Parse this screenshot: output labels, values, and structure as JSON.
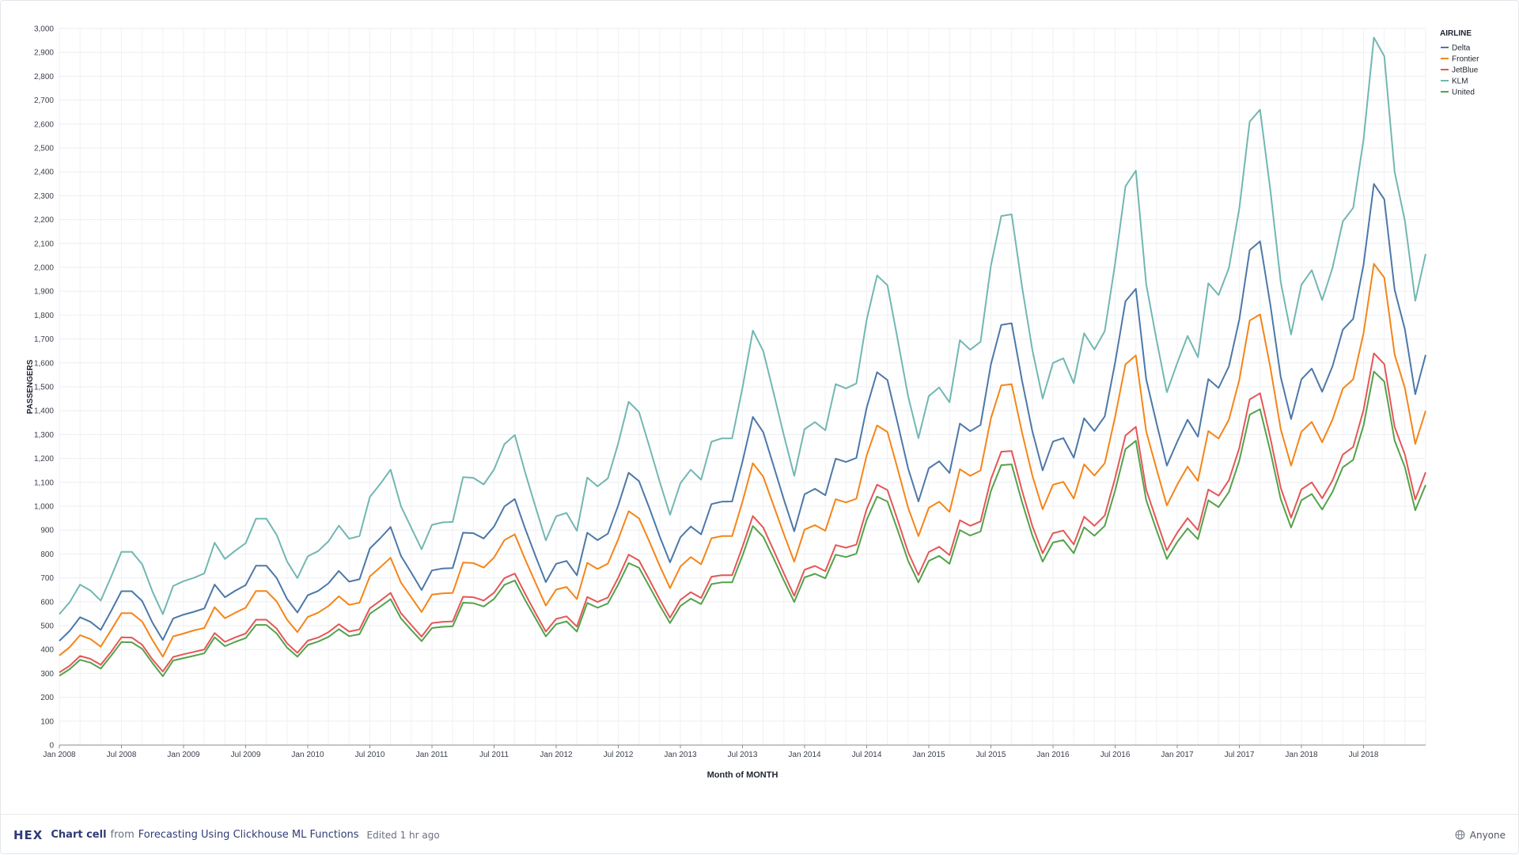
{
  "footer": {
    "logo": "HEX",
    "cell_type": "Chart cell",
    "from_word": "from",
    "project": "Forecasting Using Clickhouse ML Functions",
    "edited": "Edited 1 hr ago",
    "sharing": "Anyone",
    "sharing_icon": "globe-icon"
  },
  "chart_data": {
    "type": "line",
    "xlabel": "Month of MONTH",
    "ylabel": "PASSENGERS",
    "ylim": [
      0,
      3000
    ],
    "y_ticks": [
      0,
      100,
      200,
      300,
      400,
      500,
      600,
      700,
      800,
      900,
      1000,
      1100,
      1200,
      1300,
      1400,
      1500,
      1600,
      1700,
      1800,
      1900,
      2000,
      2100,
      2200,
      2300,
      2400,
      2500,
      2600,
      2700,
      2800,
      2900,
      3000
    ],
    "y_tick_labels": [
      "0",
      "100",
      "200",
      "300",
      "400",
      "500",
      "600",
      "700",
      "800",
      "900",
      "1,000",
      "1,100",
      "1,200",
      "1,300",
      "1,400",
      "1,500",
      "1,600",
      "1,700",
      "1,800",
      "1,900",
      "2,000",
      "2,100",
      "2,200",
      "2,300",
      "2,400",
      "2,500",
      "2,600",
      "2,700",
      "2,800",
      "2,900",
      "3,000"
    ],
    "x_start": "2008-01",
    "x_tick_labels": [
      "Jan 2008",
      "Jul 2008",
      "Jan 2009",
      "Jul 2009",
      "Jan 2010",
      "Jul 2010",
      "Jan 2011",
      "Jul 2011",
      "Jan 2012",
      "Jul 2012",
      "Jan 2013",
      "Jul 2013",
      "Jan 2014",
      "Jul 2014",
      "Jan 2015",
      "Jul 2015",
      "Jan 2016",
      "Jul 2016",
      "Jan 2017",
      "Jul 2017",
      "Jan 2018",
      "Jul 2018"
    ],
    "grid": true,
    "legend": {
      "title": "AIRLINE",
      "placement": "top-right"
    },
    "series": [
      {
        "name": "Delta",
        "color": "#4c78a8",
        "values": [
          436,
          478,
          535,
          516,
          482,
          561,
          644,
          644,
          603,
          512,
          440,
          530,
          546,
          558,
          572,
          672,
          619,
          646,
          670,
          751,
          751,
          699,
          612,
          555,
          627,
          645,
          677,
          729,
          684,
          694,
          823,
          866,
          913,
          792,
          722,
          649,
          731,
          739,
          741,
          889,
          887,
          865,
          915,
          999,
          1030,
          906,
          792,
          682,
          759,
          771,
          711,
          889,
          858,
          885,
          1004,
          1140,
          1105,
          992,
          874,
          765,
          870,
          915,
          882,
          1009,
          1019,
          1020,
          1187,
          1374,
          1310,
          1169,
          1028,
          895,
          1050,
          1073,
          1046,
          1199,
          1185,
          1202,
          1413,
          1561,
          1528,
          1345,
          1159,
          1020,
          1159,
          1188,
          1139,
          1346,
          1314,
          1340,
          1594,
          1759,
          1766,
          1526,
          1315,
          1150,
          1271,
          1285,
          1203,
          1368,
          1315,
          1376,
          1601,
          1858,
          1910,
          1531,
          1348,
          1170,
          1270,
          1362,
          1291,
          1532,
          1495,
          1586,
          1782,
          2072,
          2109,
          1841,
          1541,
          1365,
          1531,
          1576,
          1479,
          1586,
          1739,
          1784,
          2011,
          2349,
          2285,
          1906,
          1740,
          1469,
          1633
        ]
      },
      {
        "name": "Frontier",
        "color": "#f58518",
        "values": [
          375,
          410,
          460,
          444,
          412,
          481,
          552,
          552,
          517,
          439,
          370,
          455,
          467,
          480,
          490,
          577,
          531,
          554,
          575,
          645,
          645,
          601,
          525,
          473,
          536,
          554,
          582,
          623,
          587,
          596,
          706,
          744,
          784,
          680,
          619,
          557,
          630,
          635,
          637,
          764,
          762,
          743,
          785,
          858,
          882,
          777,
          680,
          584,
          651,
          662,
          611,
          763,
          737,
          760,
          862,
          979,
          949,
          852,
          751,
          657,
          747,
          787,
          757,
          866,
          875,
          875,
          1019,
          1180,
          1124,
          1003,
          883,
          768,
          902,
          921,
          897,
          1029,
          1016,
          1031,
          1213,
          1338,
          1311,
          1154,
          994,
          875,
          993,
          1019,
          976,
          1155,
          1127,
          1150,
          1368,
          1506,
          1511,
          1309,
          1129,
          987,
          1090,
          1102,
          1032,
          1175,
          1128,
          1180,
          1374,
          1594,
          1631,
          1313,
          1156,
          1003,
          1090,
          1166,
          1106,
          1315,
          1283,
          1363,
          1529,
          1777,
          1803,
          1579,
          1323,
          1170,
          1312,
          1353,
          1268,
          1363,
          1492,
          1531,
          1724,
          2015,
          1957,
          1635,
          1494,
          1261,
          1399
        ]
      },
      {
        "name": "JetBlue",
        "color": "#e45756",
        "values": [
          304,
          332,
          373,
          361,
          336,
          390,
          451,
          450,
          420,
          358,
          308,
          369,
          380,
          390,
          400,
          469,
          432,
          451,
          467,
          525,
          525,
          487,
          426,
          386,
          437,
          450,
          473,
          506,
          475,
          484,
          573,
          604,
          637,
          552,
          503,
          454,
          511,
          516,
          518,
          621,
          619,
          605,
          638,
          699,
          718,
          633,
          553,
          475,
          528,
          539,
          496,
          620,
          599,
          618,
          701,
          797,
          773,
          692,
          610,
          533,
          608,
          640,
          616,
          705,
          711,
          711,
          830,
          959,
          911,
          816,
          719,
          625,
          734,
          750,
          728,
          837,
          826,
          839,
          988,
          1090,
          1068,
          940,
          808,
          712,
          808,
          830,
          795,
          941,
          918,
          936,
          1113,
          1228,
          1231,
          1066,
          918,
          803,
          887,
          898,
          840,
          956,
          918,
          961,
          1118,
          1296,
          1332,
          1069,
          941,
          815,
          889,
          950,
          900,
          1070,
          1044,
          1109,
          1244,
          1447,
          1473,
          1284,
          1077,
          952,
          1071,
          1100,
          1033,
          1108,
          1216,
          1248,
          1403,
          1640,
          1595,
          1332,
          1216,
          1028,
          1142
        ]
      },
      {
        "name": "KLM",
        "color": "#72b7b2",
        "values": [
          548,
          598,
          672,
          647,
          605,
          704,
          809,
          809,
          757,
          642,
          548,
          666,
          686,
          700,
          719,
          847,
          779,
          814,
          845,
          948,
          948,
          879,
          769,
          699,
          790,
          812,
          853,
          919,
          864,
          875,
          1039,
          1093,
          1153,
          1000,
          910,
          820,
          922,
          932,
          934,
          1122,
          1119,
          1091,
          1154,
          1260,
          1298,
          1141,
          998,
          857,
          958,
          972,
          897,
          1120,
          1083,
          1117,
          1264,
          1437,
          1394,
          1250,
          1103,
          964,
          1096,
          1153,
          1111,
          1270,
          1284,
          1284,
          1496,
          1735,
          1650,
          1475,
          1297,
          1127,
          1323,
          1352,
          1318,
          1511,
          1493,
          1514,
          1781,
          1966,
          1925,
          1695,
          1461,
          1285,
          1461,
          1497,
          1435,
          1695,
          1655,
          1688,
          2007,
          2215,
          2222,
          1920,
          1656,
          1451,
          1600,
          1619,
          1515,
          1724,
          1656,
          1733,
          2016,
          2339,
          2405,
          1929,
          1697,
          1477,
          1599,
          1713,
          1624,
          1933,
          1884,
          1998,
          2247,
          2610,
          2660,
          2321,
          1939,
          1719,
          1927,
          1988,
          1863,
          1998,
          2192,
          2249,
          2534,
          2962,
          2884,
          2400,
          2194,
          1860,
          2056
        ]
      },
      {
        "name": "United",
        "color": "#54a24b",
        "values": [
          290,
          318,
          357,
          345,
          320,
          374,
          431,
          430,
          403,
          343,
          288,
          354,
          364,
          374,
          384,
          451,
          414,
          432,
          448,
          503,
          503,
          467,
          408,
          370,
          419,
          433,
          453,
          485,
          456,
          464,
          550,
          579,
          611,
          530,
          482,
          435,
          490,
          495,
          497,
          596,
          594,
          580,
          612,
          671,
          689,
          607,
          531,
          455,
          506,
          518,
          475,
          595,
          575,
          593,
          673,
          762,
          742,
          664,
          585,
          511,
          582,
          613,
          590,
          674,
          681,
          681,
          793,
          917,
          872,
          782,
          689,
          599,
          702,
          717,
          698,
          797,
          787,
          801,
          943,
          1040,
          1020,
          898,
          772,
          681,
          771,
          792,
          759,
          900,
          877,
          894,
          1064,
          1172,
          1175,
          1018,
          878,
          768,
          848,
          858,
          803,
          912,
          876,
          918,
          1066,
          1239,
          1274,
          1025,
          900,
          779,
          850,
          907,
          862,
          1025,
          996,
          1060,
          1191,
          1383,
          1406,
          1228,
          1030,
          911,
          1025,
          1051,
          986,
          1060,
          1163,
          1194,
          1338,
          1564,
          1522,
          1275,
          1163,
          983,
          1089
        ]
      }
    ]
  }
}
